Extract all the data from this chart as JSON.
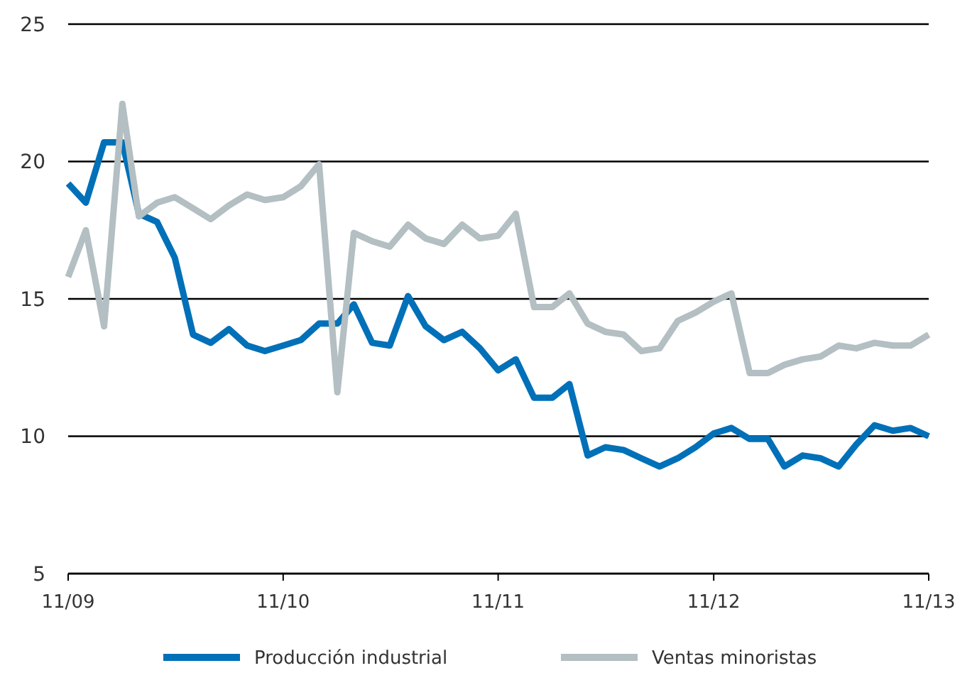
{
  "chart_data": {
    "type": "line",
    "x": [
      "2009-11",
      "2009-12",
      "2010-01",
      "2010-02",
      "2010-03",
      "2010-04",
      "2010-05",
      "2010-06",
      "2010-07",
      "2010-08",
      "2010-09",
      "2010-10",
      "2010-11",
      "2010-12",
      "2011-01",
      "2011-02",
      "2011-03",
      "2011-04",
      "2011-05",
      "2011-06",
      "2011-07",
      "2011-08",
      "2011-09",
      "2011-10",
      "2011-11",
      "2011-12",
      "2012-01",
      "2012-02",
      "2012-03",
      "2012-04",
      "2012-05",
      "2012-06",
      "2012-07",
      "2012-08",
      "2012-09",
      "2012-10",
      "2012-11",
      "2012-12",
      "2013-01",
      "2013-02",
      "2013-03",
      "2013-04",
      "2013-05",
      "2013-06",
      "2013-07",
      "2013-08",
      "2013-09",
      "2013-10",
      "2013-11"
    ],
    "series": [
      {
        "name": "Producción industrial",
        "color": "#0070b8",
        "values": [
          19.2,
          18.5,
          20.7,
          20.7,
          18.1,
          17.8,
          16.5,
          13.7,
          13.4,
          13.9,
          13.3,
          13.1,
          13.3,
          13.5,
          14.1,
          14.1,
          14.8,
          13.4,
          13.3,
          15.1,
          14.0,
          13.5,
          13.8,
          13.2,
          12.4,
          12.8,
          11.4,
          11.4,
          11.9,
          9.3,
          9.6,
          9.5,
          9.2,
          8.9,
          9.2,
          9.6,
          10.1,
          10.3,
          9.9,
          9.9,
          8.9,
          9.3,
          9.2,
          8.9,
          9.7,
          10.4,
          10.2,
          10.3,
          10.0
        ]
      },
      {
        "name": "Ventas minoristas",
        "color": "#b3bfc2",
        "values": [
          15.8,
          17.5,
          14.0,
          22.1,
          18.0,
          18.5,
          18.7,
          18.3,
          17.9,
          18.4,
          18.8,
          18.6,
          18.7,
          19.1,
          19.9,
          11.6,
          17.4,
          17.1,
          16.9,
          17.7,
          17.2,
          17.0,
          17.7,
          17.2,
          17.3,
          18.1,
          14.7,
          14.7,
          15.2,
          14.1,
          13.8,
          13.7,
          13.1,
          13.2,
          14.2,
          14.5,
          14.9,
          15.2,
          12.3,
          12.3,
          12.6,
          12.8,
          12.9,
          13.3,
          13.2,
          13.4,
          13.3,
          13.3,
          13.7
        ]
      }
    ],
    "xlim": [
      "2009-11",
      "2013-11"
    ],
    "xticks": [
      {
        "value": "2009-11",
        "label": "11/09"
      },
      {
        "value": "2010-11",
        "label": "11/10"
      },
      {
        "value": "2011-11",
        "label": "11/11"
      },
      {
        "value": "2012-11",
        "label": "11/12"
      },
      {
        "value": "2013-11",
        "label": "11/13"
      }
    ],
    "ylim": [
      5,
      25
    ],
    "yticks": [
      5,
      10,
      15,
      20,
      25
    ],
    "grid": "y",
    "legend": "bottom",
    "marker": "none",
    "line_style": "solid"
  }
}
